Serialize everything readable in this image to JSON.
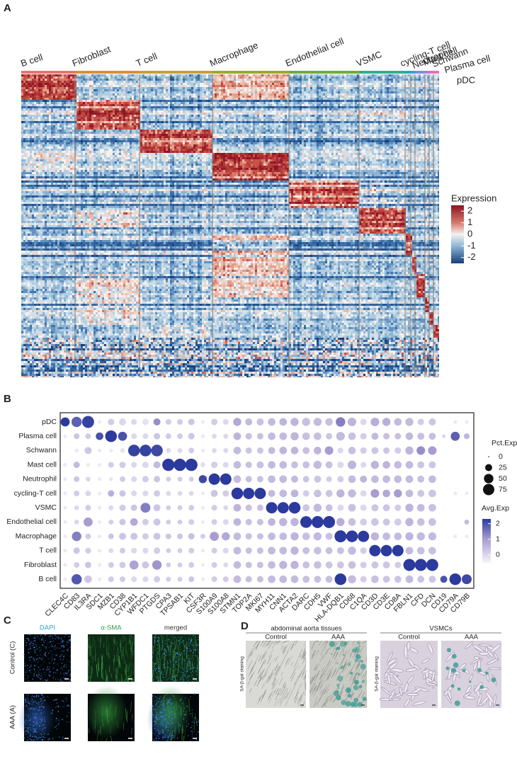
{
  "panels": {
    "a": "A",
    "b": "B",
    "c": "C",
    "d": "D"
  },
  "heatmap": {
    "clusters": [
      {
        "name": "B cell",
        "color": "#e8736e"
      },
      {
        "name": "Fibroblast",
        "color": "#d6922f"
      },
      {
        "name": "T cell",
        "color": "#c4a232"
      },
      {
        "name": "Macrophage",
        "color": "#9aa92f"
      },
      {
        "name": "Endothelial cell",
        "color": "#6fae35"
      },
      {
        "name": "VSMC",
        "color": "#34ad8c"
      },
      {
        "name": "cycling-T cell",
        "color": "#26aab5"
      },
      {
        "name": "Neutrophil",
        "color": "#35a0d8"
      },
      {
        "name": "Mast cell",
        "color": "#7d8ee0"
      },
      {
        "name": "Schwann",
        "color": "#b577dc"
      },
      {
        "name": "Plasma cell",
        "color": "#dc6ec4"
      },
      {
        "name": "pDC",
        "color": "#ef6fa4"
      }
    ],
    "legend_title": "Expression",
    "legend_lim": [
      -2.5,
      2.5
    ],
    "legend_ticks": [
      2,
      1,
      0,
      -1,
      -2
    ]
  },
  "chart_data": {
    "type": "dotplot",
    "genes": [
      "CLEC4C",
      "CD83",
      "IL3RA",
      "SDC1",
      "MZB1",
      "CD38",
      "CYP1B1",
      "WFDC1",
      "PTGDS",
      "CPA3",
      "TPSAB1",
      "KIT",
      "CSF3R",
      "S100A9",
      "S100A8",
      "STMN1",
      "TOP2A",
      "MKI67",
      "MYH11",
      "CNN1",
      "ACTA2",
      "DARC",
      "CDH5",
      "VWF",
      "HLA-DQB1",
      "CD68",
      "C1QA",
      "CD3D",
      "CD3E",
      "CD8A",
      "FBLN1",
      "CFD",
      "DCN",
      "CD19",
      "CD79A",
      "CD79B"
    ],
    "rows": [
      {
        "name": "pDC",
        "pct": [
          45,
          60,
          85,
          5,
          20,
          25,
          15,
          20,
          25,
          15,
          15,
          20,
          5,
          20,
          15,
          35,
          25,
          25,
          30,
          30,
          35,
          35,
          35,
          30,
          50,
          40,
          20,
          40,
          35,
          30,
          35,
          20,
          25,
          0,
          5,
          5
        ],
        "avg": [
          2.3,
          1.8,
          2.2,
          -0.3,
          0.2,
          0,
          0,
          -0.2,
          1.2,
          0.2,
          0.2,
          0.3,
          -0.3,
          0.2,
          0,
          0.8,
          0.5,
          0.4,
          0.5,
          0.6,
          0.6,
          0.4,
          0.5,
          0.4,
          1.4,
          0.6,
          0,
          0.7,
          0.7,
          0.5,
          0.5,
          0.2,
          0.3,
          -0.5,
          -0.3,
          -0.3
        ]
      },
      {
        "name": "Plasma cell",
        "pct": [
          5,
          15,
          15,
          30,
          80,
          45,
          15,
          15,
          20,
          15,
          15,
          20,
          5,
          10,
          10,
          30,
          20,
          20,
          30,
          30,
          35,
          30,
          30,
          20,
          40,
          30,
          20,
          25,
          20,
          20,
          30,
          25,
          25,
          5,
          45,
          15
        ],
        "avg": [
          -0.3,
          0.3,
          0.2,
          2.0,
          2.3,
          2.0,
          0,
          0,
          0.3,
          0.2,
          0.2,
          0.3,
          -0.3,
          0,
          0,
          0.6,
          0.4,
          0.4,
          0.5,
          0.5,
          0.6,
          0.4,
          0.4,
          0.3,
          0.5,
          0.4,
          0.2,
          0.5,
          0.4,
          0.4,
          0.5,
          0.4,
          0.4,
          0,
          1.8,
          0.6
        ]
      },
      {
        "name": "Schwann",
        "pct": [
          0,
          5,
          25,
          5,
          5,
          10,
          80,
          80,
          80,
          10,
          10,
          15,
          5,
          10,
          10,
          30,
          20,
          20,
          25,
          30,
          30,
          25,
          30,
          40,
          15,
          30,
          20,
          25,
          20,
          20,
          35,
          40,
          40,
          0,
          0,
          0
        ],
        "avg": [
          -0.5,
          -0.3,
          0.3,
          -0.3,
          -0.3,
          -0.2,
          2.2,
          2.2,
          2.1,
          0,
          0,
          0.2,
          -0.3,
          0,
          0,
          0.5,
          0.3,
          0.3,
          0.5,
          0.6,
          0.6,
          0.4,
          0.6,
          1.0,
          0,
          0.4,
          0.2,
          0.3,
          0.3,
          0.2,
          0.6,
          1.2,
          1.0,
          -0.5,
          -0.5,
          -0.5
        ]
      },
      {
        "name": "Mast cell",
        "pct": [
          5,
          20,
          5,
          5,
          15,
          20,
          15,
          20,
          25,
          90,
          90,
          90,
          10,
          20,
          15,
          30,
          20,
          25,
          30,
          30,
          25,
          25,
          35,
          25,
          20,
          40,
          15,
          35,
          30,
          30,
          30,
          25,
          25,
          0,
          0,
          0
        ],
        "avg": [
          -0.3,
          0.5,
          -0.3,
          -0.3,
          0.2,
          0.2,
          0,
          0,
          0.5,
          2.3,
          2.3,
          2.3,
          -0.1,
          0.2,
          0,
          0.5,
          0.4,
          0.4,
          0.5,
          0.5,
          0.4,
          0.4,
          0.5,
          0.4,
          0,
          0.6,
          0,
          0.6,
          0.6,
          0.5,
          0.5,
          0.3,
          0.3,
          -0.5,
          -0.5,
          -0.5
        ]
      },
      {
        "name": "Neutrophil",
        "pct": [
          5,
          15,
          10,
          5,
          5,
          15,
          15,
          20,
          20,
          10,
          10,
          10,
          35,
          75,
          75,
          30,
          20,
          20,
          30,
          30,
          25,
          20,
          25,
          15,
          20,
          30,
          25,
          30,
          30,
          30,
          30,
          25,
          30,
          0,
          0,
          0
        ],
        "avg": [
          -0.3,
          0.3,
          0,
          -0.3,
          -0.2,
          0.2,
          0,
          0.2,
          0.3,
          0.2,
          0.2,
          0.2,
          2.1,
          2.3,
          2.3,
          0.5,
          0.4,
          0.4,
          0.5,
          0.5,
          0.5,
          0.3,
          0.3,
          0.2,
          0.2,
          0.5,
          0.6,
          0.5,
          0.5,
          0.5,
          0.5,
          0.4,
          0.5,
          -0.5,
          -0.5,
          -0.5
        ]
      },
      {
        "name": "cycling-T cell",
        "pct": [
          5,
          15,
          15,
          5,
          20,
          20,
          15,
          15,
          20,
          10,
          10,
          10,
          5,
          25,
          20,
          80,
          75,
          75,
          25,
          30,
          30,
          20,
          30,
          25,
          35,
          35,
          20,
          40,
          30,
          35,
          30,
          25,
          30,
          0,
          5,
          5
        ],
        "avg": [
          -0.3,
          0.2,
          0,
          -0.3,
          0.7,
          0.3,
          0,
          0,
          0.2,
          0,
          0,
          0,
          -0.3,
          0.3,
          0.2,
          2.3,
          2.3,
          2.3,
          0.5,
          0.5,
          0.6,
          0.2,
          0.4,
          0.3,
          0.6,
          0.5,
          0,
          1.0,
          0.8,
          1.0,
          0.5,
          0.3,
          0.3,
          -0.5,
          -0.3,
          -0.3
        ]
      },
      {
        "name": "VSMC",
        "pct": [
          5,
          10,
          15,
          5,
          10,
          20,
          20,
          55,
          25,
          10,
          10,
          15,
          5,
          15,
          10,
          30,
          20,
          20,
          75,
          75,
          80,
          25,
          35,
          25,
          20,
          30,
          20,
          25,
          25,
          20,
          35,
          30,
          30,
          0,
          0,
          0
        ],
        "avg": [
          -0.3,
          0,
          0.2,
          -0.3,
          0,
          0.2,
          0.3,
          1.4,
          0.3,
          0.2,
          0.2,
          0.2,
          -0.3,
          0.2,
          0,
          0.6,
          0.4,
          0.4,
          2.3,
          2.3,
          2.3,
          0.3,
          0.5,
          0.4,
          0,
          0.4,
          0,
          0.3,
          0.3,
          0.2,
          0.6,
          0.5,
          0.4,
          -0.5,
          -0.5,
          -0.5
        ]
      },
      {
        "name": "Endothelial cell",
        "pct": [
          5,
          10,
          45,
          5,
          10,
          20,
          30,
          20,
          25,
          10,
          10,
          15,
          5,
          15,
          15,
          30,
          20,
          20,
          30,
          35,
          35,
          80,
          85,
          85,
          35,
          30,
          25,
          30,
          25,
          25,
          35,
          30,
          30,
          0,
          0,
          10
        ],
        "avg": [
          -0.3,
          0,
          1.0,
          -0.3,
          0.2,
          0.3,
          0.8,
          0.2,
          0.3,
          0.2,
          0.2,
          0.2,
          -0.3,
          0.2,
          0,
          0.6,
          0.4,
          0.4,
          0.6,
          0.6,
          0.6,
          2.3,
          2.3,
          2.3,
          0.7,
          0.4,
          0.2,
          0.3,
          0.3,
          0.2,
          0.6,
          0.4,
          0.4,
          -0.5,
          -0.5,
          0.5
        ]
      },
      {
        "name": "Macrophage",
        "pct": [
          5,
          50,
          15,
          5,
          15,
          25,
          25,
          20,
          25,
          15,
          15,
          20,
          10,
          45,
          35,
          30,
          20,
          20,
          30,
          30,
          35,
          30,
          35,
          25,
          85,
          80,
          75,
          35,
          30,
          30,
          35,
          35,
          35,
          0,
          5,
          5
        ],
        "avg": [
          -0.3,
          1.4,
          0.2,
          -0.3,
          0.3,
          0.3,
          0.3,
          0.2,
          0.3,
          0.3,
          0.3,
          0.4,
          0.2,
          1.0,
          0.8,
          0.5,
          0.4,
          0.4,
          0.5,
          0.5,
          0.6,
          0.4,
          0.5,
          0.4,
          2.3,
          2.3,
          2.3,
          0.6,
          0.5,
          0.5,
          0.6,
          0.5,
          0.5,
          -0.5,
          -0.3,
          -0.3
        ]
      },
      {
        "name": "T cell",
        "pct": [
          5,
          20,
          15,
          5,
          10,
          15,
          15,
          15,
          20,
          10,
          10,
          15,
          5,
          15,
          15,
          30,
          20,
          20,
          30,
          30,
          35,
          25,
          30,
          25,
          25,
          35,
          20,
          75,
          75,
          75,
          30,
          30,
          30,
          0,
          0,
          0
        ],
        "avg": [
          -0.3,
          0.3,
          0.2,
          -0.3,
          0,
          0.2,
          0,
          0,
          0.2,
          0.2,
          0.2,
          0.2,
          -0.3,
          0.2,
          0,
          0.5,
          0.4,
          0.4,
          0.5,
          0.5,
          0.6,
          0.4,
          0.4,
          0.4,
          0.4,
          0.5,
          0.2,
          2.3,
          2.3,
          2.3,
          0.5,
          0.4,
          0.4,
          -0.5,
          -0.5,
          -0.5
        ]
      },
      {
        "name": "Fibroblast",
        "pct": [
          5,
          15,
          20,
          5,
          15,
          20,
          45,
          25,
          50,
          10,
          10,
          15,
          5,
          15,
          10,
          30,
          20,
          20,
          30,
          35,
          35,
          25,
          30,
          25,
          25,
          30,
          20,
          25,
          25,
          20,
          85,
          85,
          85,
          0,
          0,
          0
        ],
        "avg": [
          -0.3,
          0.2,
          0.3,
          -0.3,
          0.2,
          0.2,
          0.9,
          0.3,
          1.1,
          0.2,
          0.2,
          0.2,
          -0.3,
          0.2,
          0,
          0.5,
          0.4,
          0.4,
          0.5,
          0.6,
          0.6,
          0.4,
          0.4,
          0.3,
          0.3,
          0.4,
          0.2,
          0.3,
          0.3,
          0.2,
          2.3,
          2.3,
          2.3,
          -0.5,
          -0.5,
          -0.5
        ]
      },
      {
        "name": "B cell",
        "pct": [
          5,
          60,
          30,
          5,
          15,
          15,
          15,
          15,
          20,
          10,
          10,
          15,
          5,
          15,
          15,
          30,
          20,
          20,
          30,
          30,
          30,
          25,
          25,
          25,
          80,
          35,
          20,
          30,
          25,
          25,
          30,
          25,
          25,
          25,
          80,
          55
        ],
        "avg": [
          -0.3,
          1.9,
          0.3,
          -0.3,
          0.2,
          0.2,
          0,
          0,
          0.2,
          0.2,
          0.2,
          0.3,
          -0.3,
          0.2,
          0.2,
          0.5,
          0.4,
          0.4,
          0.5,
          0.5,
          0.5,
          0.4,
          0.4,
          0.4,
          2.3,
          0.5,
          0.2,
          0.4,
          0.3,
          0.3,
          0.5,
          0.3,
          0.3,
          2.0,
          2.3,
          2.1
        ]
      }
    ],
    "size_title": "Pct.Exp",
    "size_ticks": [
      0,
      25,
      50,
      75
    ],
    "color_title": "Avg.Exp",
    "color_lim": [
      -0.5,
      2.3
    ],
    "color_ticks": [
      2,
      1,
      0
    ],
    "color_low": "#f7f4fa",
    "color_high": "#2b3a9c"
  },
  "panel_c": {
    "columns": [
      "DAPI",
      "α-SMA",
      "merged"
    ],
    "rows": [
      "Control (C)",
      "AAA (A)"
    ]
  },
  "panel_d": {
    "groups": [
      {
        "title": "abdominal aorta tissues",
        "columns": [
          "Control",
          "AAA"
        ],
        "side_label": "SA-β-gal staining"
      },
      {
        "title": "VSMCs",
        "columns": [
          "Control",
          "AAA"
        ],
        "side_label": "SA-β-gal staining"
      }
    ]
  }
}
